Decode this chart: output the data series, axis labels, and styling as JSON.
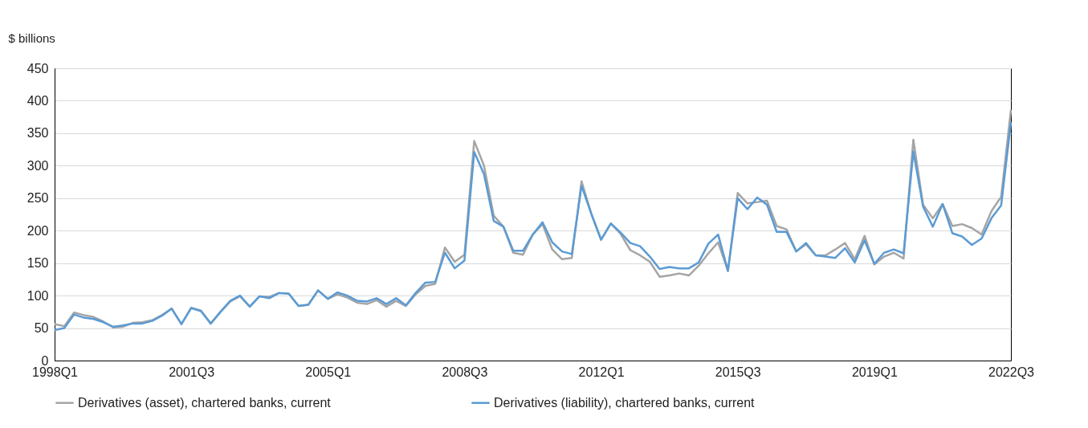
{
  "chart_data": {
    "type": "line",
    "ylabel": "$ billions",
    "categories": [
      "1998Q1",
      null,
      null,
      null,
      null,
      null,
      null,
      null,
      null,
      null,
      null,
      null,
      null,
      null,
      "2001Q3",
      null,
      null,
      null,
      null,
      null,
      null,
      null,
      null,
      null,
      null,
      null,
      null,
      null,
      "2005Q1",
      null,
      null,
      null,
      null,
      null,
      null,
      null,
      null,
      null,
      null,
      null,
      null,
      null,
      "2008Q3",
      null,
      null,
      null,
      null,
      null,
      null,
      null,
      null,
      null,
      null,
      null,
      null,
      null,
      "2012Q1",
      null,
      null,
      null,
      null,
      null,
      null,
      null,
      null,
      null,
      null,
      null,
      null,
      null,
      "2015Q3",
      null,
      null,
      null,
      null,
      null,
      null,
      null,
      null,
      null,
      null,
      null,
      null,
      null,
      "2019Q1",
      null,
      null,
      null,
      null,
      null,
      null,
      null,
      null,
      null,
      null,
      null,
      null,
      null,
      "2022Q3"
    ],
    "series": [
      {
        "name": "Derivatives (asset), chartered banks, current",
        "color": "#a5a5a5",
        "values": [
          56,
          53,
          74,
          70,
          67,
          60,
          51,
          52,
          58,
          59,
          62,
          70,
          80,
          56,
          81,
          77,
          57,
          75,
          91,
          99,
          83,
          99,
          98,
          104,
          103,
          84,
          86,
          108,
          95,
          102,
          97,
          89,
          87,
          93,
          83,
          92,
          84,
          102,
          115,
          118,
          174,
          152,
          163,
          338,
          300,
          223,
          206,
          166,
          163,
          194,
          210,
          171,
          156,
          158,
          276,
          226,
          186,
          211,
          195,
          170,
          162,
          152,
          129,
          131,
          134,
          131,
          146,
          165,
          182,
          138,
          258,
          242,
          244,
          246,
          207,
          202,
          168,
          179,
          162,
          162,
          171,
          181,
          156,
          192,
          148,
          160,
          166,
          157,
          340,
          240,
          219,
          241,
          207,
          210,
          204,
          194,
          230,
          252,
          386
        ]
      },
      {
        "name": "Derivatives (liability), chartered banks, current",
        "color": "#5b9bd5",
        "values": [
          47,
          50,
          71,
          66,
          64,
          59,
          52,
          54,
          57,
          57,
          61,
          69,
          80,
          56,
          81,
          76,
          57,
          75,
          92,
          100,
          83,
          99,
          96,
          104,
          103,
          84,
          86,
          108,
          95,
          105,
          100,
          92,
          91,
          96,
          87,
          96,
          85,
          104,
          120,
          121,
          166,
          142,
          154,
          321,
          287,
          215,
          206,
          169,
          169,
          194,
          213,
          182,
          168,
          164,
          269,
          226,
          186,
          211,
          197,
          181,
          176,
          160,
          141,
          144,
          142,
          142,
          151,
          180,
          194,
          138,
          250,
          233,
          251,
          240,
          198,
          198,
          168,
          181,
          162,
          160,
          158,
          173,
          151,
          185,
          149,
          166,
          171,
          165,
          322,
          237,
          206,
          241,
          196,
          191,
          178,
          188,
          219,
          239,
          367
        ]
      }
    ],
    "ylim": [
      0,
      450
    ],
    "yticks": [
      0,
      50,
      100,
      150,
      200,
      250,
      300,
      350,
      400,
      450
    ],
    "grid": "y",
    "legend": "bottom",
    "marker": "none",
    "line_style": "solid"
  }
}
